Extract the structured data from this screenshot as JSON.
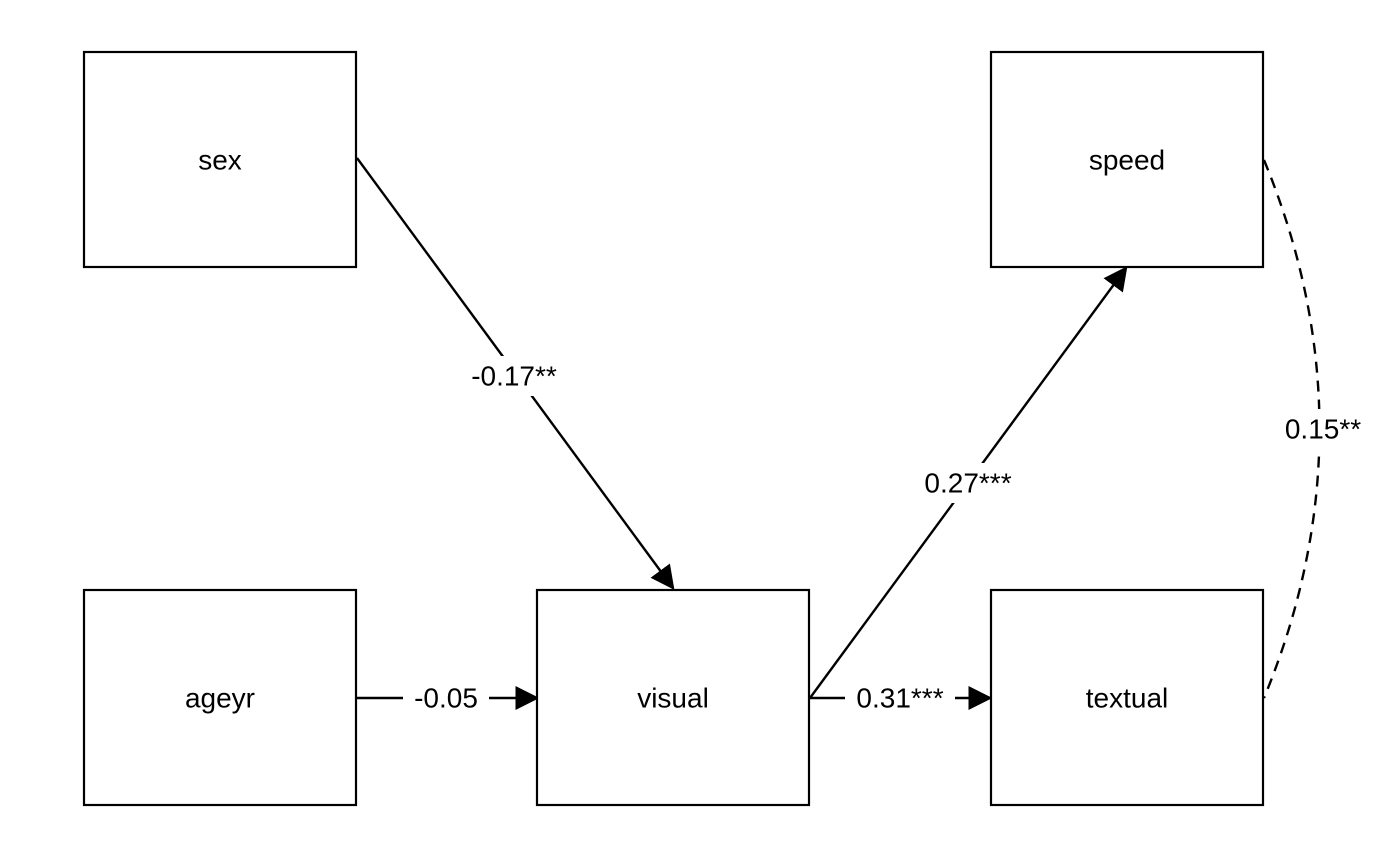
{
  "diagram": {
    "nodes": {
      "sex": "sex",
      "ageyr": "ageyr",
      "visual": "visual",
      "speed": "speed",
      "textual": "textual"
    },
    "edges": {
      "sex_visual": "-0.17**",
      "ageyr_visual": "-0.05",
      "visual_speed": "0.27***",
      "visual_textual": "0.31***",
      "speed_textual": "0.15**"
    }
  }
}
